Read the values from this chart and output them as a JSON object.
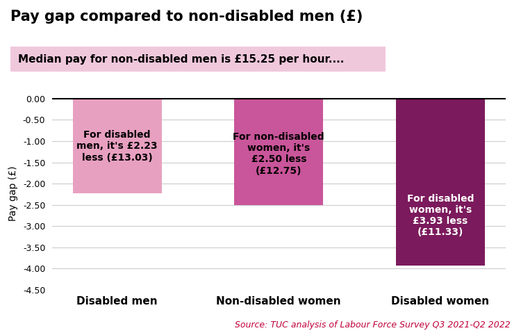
{
  "title": "Pay gap compared to non-disabled men (£)",
  "subtitle": "Median pay for non-disabled men is £15.25 per hour....",
  "categories": [
    "Disabled men",
    "Non-disabled women",
    "Disabled women"
  ],
  "values": [
    -2.23,
    -2.5,
    -3.93
  ],
  "bar_colors": [
    "#e8a0c0",
    "#c9559a",
    "#7b1a5c"
  ],
  "subtitle_bg_color": "#f0c8dc",
  "ylabel": "Pay gap (£)",
  "ylim": [
    -4.5,
    0.05
  ],
  "yticks": [
    0.0,
    -0.5,
    -1.0,
    -1.5,
    -2.0,
    -2.5,
    -3.0,
    -3.5,
    -4.0,
    -4.5
  ],
  "ytick_labels": [
    "0.00",
    "-0.50",
    "-1.00",
    "-1.50",
    "-2.00",
    "-2.50",
    "-3.00",
    "-3.50",
    "-4.00",
    "-4.50"
  ],
  "bar_labels": [
    "For disabled\nmen, it's £2.23\nless (£13.03)",
    "For non-disabled\nwomen, it's\n£2.50 less\n(£12.75)",
    "For disabled\nwomen, it's\n£3.93 less\n(£11.33)"
  ],
  "bar_label_colors": [
    "#000000",
    "#000000",
    "#ffffff"
  ],
  "source_text": "Source: TUC analysis of Labour Force Survey Q3 2021-Q2 2022",
  "source_color": "#c0003a",
  "title_fontsize": 15,
  "subtitle_fontsize": 11,
  "ylabel_fontsize": 10,
  "xlabel_fontsize": 11,
  "bar_label_fontsize": 10,
  "source_fontsize": 9,
  "background_color": "#ffffff",
  "grid_color": "#cccccc"
}
